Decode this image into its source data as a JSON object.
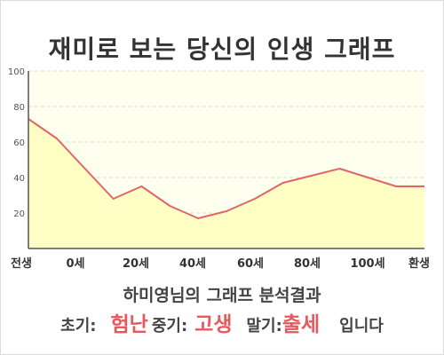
{
  "title": "재미로 보는 당신의 인생 그래프",
  "chart_data": {
    "type": "area",
    "categories": [
      "전생",
      "0세",
      "20세",
      "40세",
      "60세",
      "80세",
      "100세",
      "환생"
    ],
    "x": [
      0,
      1,
      2,
      3,
      4,
      5,
      6,
      7,
      8,
      9,
      10,
      11,
      12,
      13,
      14
    ],
    "values": [
      73,
      62,
      45,
      28,
      35,
      24,
      17,
      21,
      28,
      37,
      41,
      45,
      40,
      35,
      35
    ],
    "ylim": [
      0,
      100
    ],
    "yticks": [
      20,
      40,
      60,
      80,
      100
    ],
    "grid": true,
    "colors": {
      "line": "#e06666",
      "fill": "#ffffc2",
      "plot_bg": "#fffff0",
      "grid": "#d8d8c8",
      "axis": "#555555"
    }
  },
  "result": {
    "heading": "하미영님의 그래프 분석결과",
    "early_label": "초기:",
    "early_value": "험난",
    "mid_label": "중기:",
    "mid_value": "고생",
    "late_label": "말기:",
    "late_value": "출세",
    "suffix": "입니다"
  }
}
